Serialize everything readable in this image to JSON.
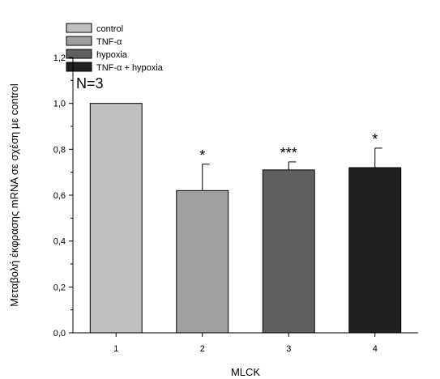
{
  "chart_data": {
    "type": "bar",
    "categories": [
      "1",
      "2",
      "3",
      "4"
    ],
    "series": [
      {
        "name": "control",
        "color": "#c0c0c0",
        "value": 1.0,
        "error": 0.0,
        "significance": ""
      },
      {
        "name": "TNF-α",
        "color": "#a0a0a0",
        "value": 0.62,
        "error": 0.115,
        "significance": "*"
      },
      {
        "name": "hypoxia",
        "color": "#606060",
        "value": 0.71,
        "error": 0.035,
        "significance": "***"
      },
      {
        "name": "TNF-α + hypoxia",
        "color": "#202020",
        "value": 0.72,
        "error": 0.085,
        "significance": "*"
      }
    ],
    "xlabel": "MLCK",
    "ylabel": "Μεταβολή έκφρασης mRNA σε σχέση με control",
    "ylim": [
      0,
      1.2
    ],
    "yticks": [
      "0,0",
      "0,2",
      "0,4",
      "0,6",
      "0,8",
      "1,0",
      "1,2"
    ],
    "annotation": "N=3",
    "legend_position": "top-left",
    "grid": false
  }
}
